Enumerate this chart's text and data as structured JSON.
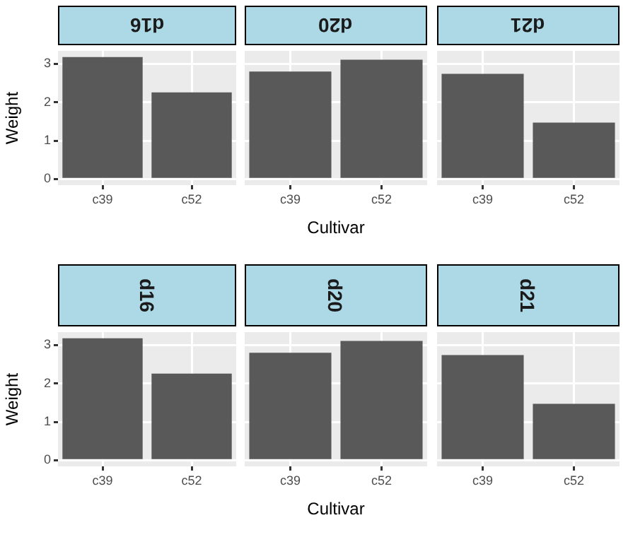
{
  "chart_data": [
    {
      "type": "bar",
      "title": "d16",
      "ylabel": "Weight",
      "categories": [
        "c39",
        "c52"
      ],
      "values": [
        3.18,
        2.26
      ],
      "color": "#595959",
      "ylim": [
        -0.16,
        3.34
      ],
      "yticks": [
        0,
        1,
        2,
        3
      ],
      "grid": true,
      "legend": false
    },
    {
      "type": "bar",
      "title": "d20",
      "xlabel": "Cultivar",
      "categories": [
        "c39",
        "c52"
      ],
      "values": [
        2.8,
        3.11
      ],
      "color": "#595959",
      "ylim": [
        -0.16,
        3.34
      ],
      "yticks": [
        0,
        1,
        2,
        3
      ],
      "grid": true,
      "legend": false,
      "tick_labels": "x"
    },
    {
      "type": "bar",
      "title": "d21",
      "categories": [
        "c39",
        "c52"
      ],
      "values": [
        2.74,
        1.47
      ],
      "color": "#595959",
      "ylim": [
        -0.16,
        3.34
      ],
      "yticks": [
        0,
        1,
        2,
        3
      ],
      "grid": true,
      "legend": false,
      "tick_labels": "x"
    },
    {
      "type": "bar",
      "title": "d16",
      "ylabel": "Weight",
      "categories": [
        "c39",
        "c52"
      ],
      "values": [
        3.18,
        2.26
      ],
      "color": "#595959",
      "ylim": [
        -0.16,
        3.34
      ],
      "yticks": [
        0,
        1,
        2,
        3
      ],
      "grid": true,
      "legend": false
    },
    {
      "type": "bar",
      "title": "d20",
      "xlabel": "Cultivar",
      "categories": [
        "c39",
        "c52"
      ],
      "values": [
        2.8,
        3.11
      ],
      "color": "#595959",
      "ylim": [
        -0.16,
        3.34
      ],
      "yticks": [
        0,
        1,
        2,
        3
      ],
      "grid": true,
      "legend": false,
      "tick_labels": "x"
    },
    {
      "type": "bar",
      "title": "d21",
      "categories": [
        "c39",
        "c52"
      ],
      "values": [
        2.74,
        1.47
      ],
      "color": "#595959",
      "ylim": [
        -0.16,
        3.34
      ],
      "yticks": [
        0,
        1,
        2,
        3
      ],
      "grid": true,
      "legend": false,
      "tick_labels": "x"
    }
  ]
}
